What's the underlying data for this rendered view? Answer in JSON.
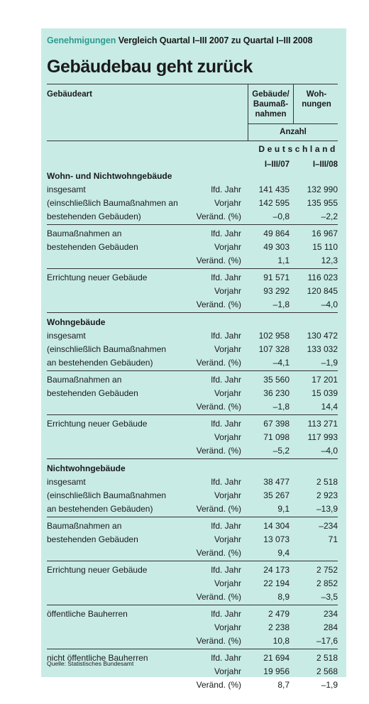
{
  "header": {
    "kicker": "Genehmigungen",
    "subtitle": "Vergleich Quartal I–III 2007 zu Quartal I–III 2008",
    "title": "Gebäudebau geht zurück"
  },
  "table": {
    "col_type": "Gebäudeart",
    "col_buildings": [
      "Gebäude/",
      "Baumaß-",
      "nahmen"
    ],
    "col_dwellings": [
      "Woh-",
      "nungen"
    ],
    "unit": "Anzahl",
    "region": "Deutschland",
    "period_1": "I–III/07",
    "period_2": "I–III/08",
    "lines": [
      {
        "label": "Wohn- und Nichtwohngebäude",
        "bold": true,
        "kind": "",
        "v1": "",
        "v2": ""
      },
      {
        "label": "insgesamt",
        "kind": "lfd. Jahr",
        "v1": "141 435",
        "v2": "132 990"
      },
      {
        "label": "(einschließlich Baumaßnahmen an",
        "kind": "Vorjahr",
        "v1": "142 595",
        "v2": "135 955"
      },
      {
        "label": "bestehenden Gebäuden)",
        "kind": "Veränd. (%)",
        "v1": "–0,8",
        "v2": "–2,2"
      },
      {
        "label": "Baumaßnahmen an",
        "kind": "lfd. Jahr",
        "v1": "49 864",
        "v2": "16 967"
      },
      {
        "label": "bestehenden Gebäuden",
        "kind": "Vorjahr",
        "v1": "49 303",
        "v2": "15 110"
      },
      {
        "label": "",
        "kind": "Veränd. (%)",
        "v1": "1,1",
        "v2": "12,3"
      },
      {
        "label": "Errichtung neuer Gebäude",
        "kind": "lfd. Jahr",
        "v1": "91 571",
        "v2": "116 023"
      },
      {
        "label": "",
        "kind": "Vorjahr",
        "v1": "93 292",
        "v2": "120 845"
      },
      {
        "label": "",
        "kind": "Veränd. (%)",
        "v1": "–1,8",
        "v2": "–4,0"
      },
      {
        "label": "Wohngebäude",
        "bold": true,
        "kind": "",
        "v1": "",
        "v2": ""
      },
      {
        "label": "insgesamt",
        "kind": "lfd. Jahr",
        "v1": "102 958",
        "v2": "130 472"
      },
      {
        "label": "(einschließlich Baumaßnahmen",
        "kind": "Vorjahr",
        "v1": "107 328",
        "v2": "133 032"
      },
      {
        "label": "an bestehenden Gebäuden)",
        "kind": "Veränd. (%)",
        "v1": "–4,1",
        "v2": "–1,9"
      },
      {
        "label": "Baumaßnahmen an",
        "kind": "lfd. Jahr",
        "v1": "35 560",
        "v2": "17 201"
      },
      {
        "label": "bestehenden Gebäuden",
        "kind": "Vorjahr",
        "v1": "36 230",
        "v2": "15 039"
      },
      {
        "label": "",
        "kind": "Veränd. (%)",
        "v1": "–1,8",
        "v2": "14,4"
      },
      {
        "label": "Errichtung neuer Gebäude",
        "kind": "lfd. Jahr",
        "v1": "67 398",
        "v2": "113 271"
      },
      {
        "label": "",
        "kind": "Vorjahr",
        "v1": "71 098",
        "v2": "117 993"
      },
      {
        "label": "",
        "kind": "Veränd. (%)",
        "v1": "–5,2",
        "v2": "–4,0"
      },
      {
        "label": "Nichtwohngebäude",
        "bold": true,
        "kind": "",
        "v1": "",
        "v2": ""
      },
      {
        "label": "insgesamt",
        "kind": "lfd. Jahr",
        "v1": "38 477",
        "v2": "2 518"
      },
      {
        "label": "(einschließlich Baumaßnahmen",
        "kind": "Vorjahr",
        "v1": "35 267",
        "v2": "2 923"
      },
      {
        "label": "an bestehenden Gebäuden)",
        "kind": "Veränd. (%)",
        "v1": "9,1",
        "v2": "–13,9"
      },
      {
        "label": "Baumaßnahmen an",
        "kind": "lfd. Jahr",
        "v1": "14 304",
        "v2": "–234"
      },
      {
        "label": "bestehenden Gebäuden",
        "kind": "Vorjahr",
        "v1": "13 073",
        "v2": "71"
      },
      {
        "label": "",
        "kind": "Veränd. (%)",
        "v1": "9,4",
        "v2": ""
      },
      {
        "label": "Errichtung neuer Gebäude",
        "kind": "lfd. Jahr",
        "v1": "24 173",
        "v2": "2 752"
      },
      {
        "label": "",
        "kind": "Vorjahr",
        "v1": "22 194",
        "v2": "2 852"
      },
      {
        "label": "",
        "kind": "Veränd. (%)",
        "v1": "8,9",
        "v2": "–3,5"
      },
      {
        "label": "öffentliche Bauherren",
        "kind": "lfd. Jahr",
        "v1": "2 479",
        "v2": "234"
      },
      {
        "label": "",
        "kind": "Vorjahr",
        "v1": "2 238",
        "v2": "284"
      },
      {
        "label": "",
        "kind": "Veränd. (%)",
        "v1": "10,8",
        "v2": "–17,6"
      },
      {
        "label": "nicht öffentliche Bauherren",
        "kind": "lfd. Jahr",
        "v1": "21 694",
        "v2": "2 518"
      },
      {
        "label": "",
        "kind": "Vorjahr",
        "v1": "19 956",
        "v2": "2 568"
      },
      {
        "label": "",
        "kind": "Veränd. (%)",
        "v1": "8,7",
        "v2": "–1,9"
      }
    ]
  },
  "source": "Quelle: Statistisches Bundesamt"
}
